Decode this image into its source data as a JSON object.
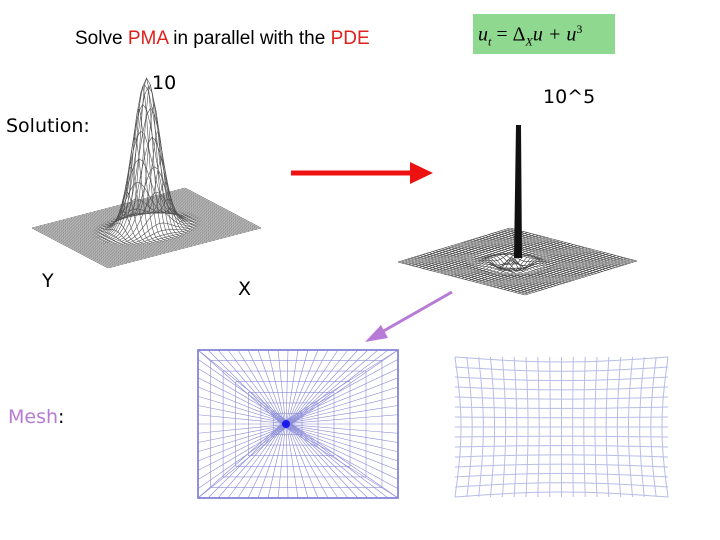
{
  "title": {
    "prefix": "Solve ",
    "highlight1": "PMA",
    "middle": " in parallel with the ",
    "highlight2": "PDE"
  },
  "equation": {
    "lhs": "u",
    "lhs_sub": "t",
    "equals": " = Δ",
    "delta_sub": "X",
    "rhs": "u + u",
    "power": "3"
  },
  "labels": {
    "peak_left": "10",
    "peak_right": "10^5",
    "solution": "Solution",
    "colon": ":",
    "axis_y": "Y",
    "axis_x": "X",
    "mesh": "Mesh",
    "mesh_colon": ":"
  },
  "colors": {
    "red_arrow": "#ee1111",
    "purple_arrow": "#b77ad6",
    "mesh_line": "#7a7ad8",
    "mesh_light": "#b8bde6",
    "eq_bg": "#8fd88f"
  }
}
